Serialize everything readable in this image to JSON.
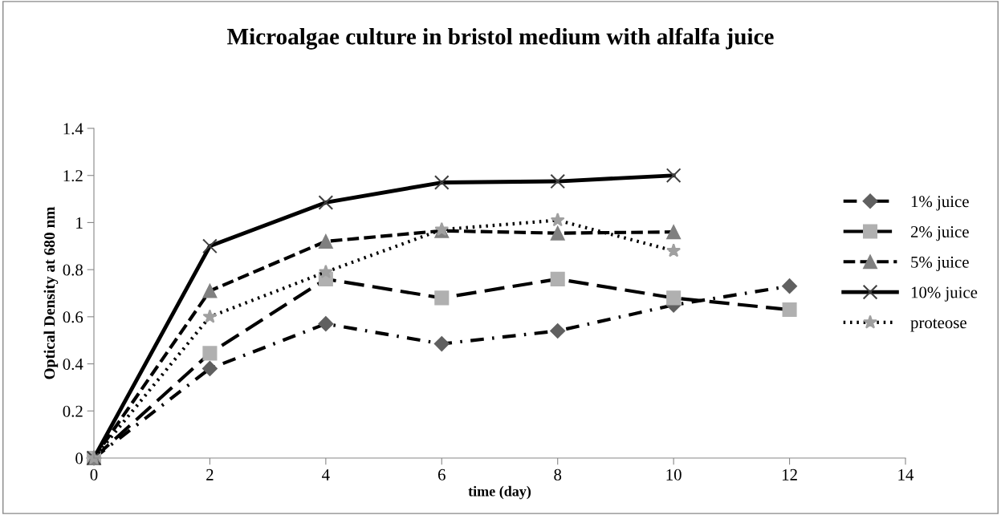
{
  "chart_data": {
    "type": "line",
    "title": "Microalgae culture in bristol medium with alfalfa juice",
    "xlabel": "time (day)",
    "ylabel": "Optical Density at 680 nm",
    "x": [
      0,
      2,
      4,
      6,
      8,
      10,
      12
    ],
    "series": [
      {
        "name": "1% juice",
        "color": "#606060",
        "marker": "diamond",
        "line_style": "dashdot",
        "values": [
          0,
          0.38,
          0.57,
          0.485,
          0.54,
          0.65,
          0.73
        ]
      },
      {
        "name": "2% juice",
        "color": "#b0b0b0",
        "marker": "square",
        "line_style": "longdash",
        "values": [
          0,
          0.445,
          0.76,
          0.68,
          0.76,
          0.68,
          0.63
        ]
      },
      {
        "name": "5% juice",
        "color": "#808080",
        "marker": "triangle",
        "line_style": "dashed",
        "values": [
          0,
          0.71,
          0.92,
          0.965,
          0.955,
          0.96,
          null
        ]
      },
      {
        "name": "10% juice",
        "color": "#404040",
        "marker": "cross",
        "line_style": "solid",
        "values": [
          0,
          0.9,
          1.085,
          1.17,
          1.175,
          1.2,
          null
        ]
      },
      {
        "name": "proteose",
        "color": "#a0a0a0",
        "marker": "star",
        "line_style": "dotted",
        "values": [
          0,
          0.6,
          0.79,
          0.97,
          1.01,
          0.88,
          null
        ]
      }
    ],
    "xlim": [
      0,
      14
    ],
    "xticks": [
      0,
      2,
      4,
      6,
      8,
      10,
      12,
      14
    ],
    "ylim": [
      0,
      1.4
    ],
    "yticks": [
      0,
      0.2,
      0.4,
      0.6,
      0.8,
      1,
      1.2,
      1.4
    ],
    "grid": false,
    "legend": "right"
  }
}
